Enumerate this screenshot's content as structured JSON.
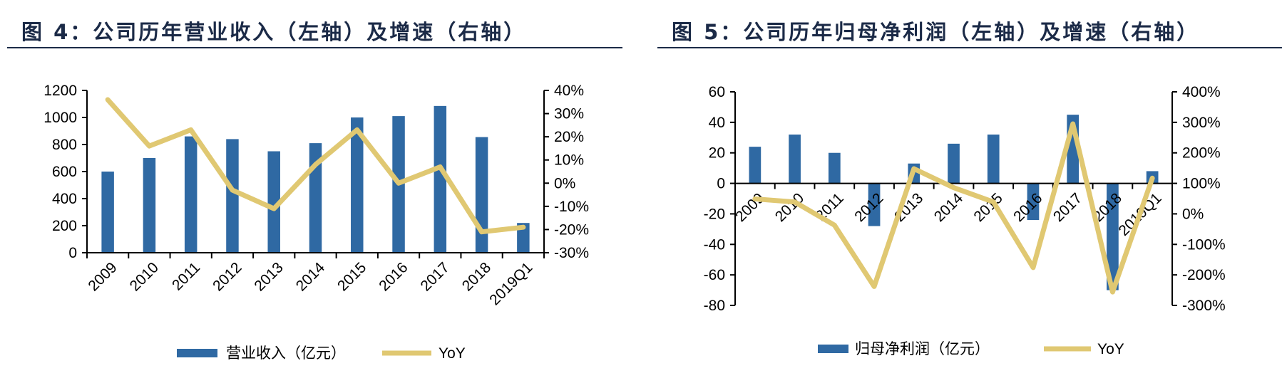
{
  "colors": {
    "bar": "#2f69a3",
    "line": "#e0c872",
    "title": "#1b2a47"
  },
  "chart_data": [
    {
      "type": "bar+line",
      "title": "图 4：公司历年营业收入（左轴）及增速（右轴）",
      "categories": [
        "2009",
        "2010",
        "2011",
        "2012",
        "2013",
        "2014",
        "2015",
        "2016",
        "2017",
        "2018",
        "2019Q1"
      ],
      "series": [
        {
          "name": "营业收入（亿元）",
          "type": "bar",
          "axis": "left",
          "values": [
            600,
            700,
            860,
            840,
            750,
            810,
            1000,
            1010,
            1085,
            855,
            220
          ]
        },
        {
          "name": "YoY",
          "type": "line",
          "axis": "right",
          "values": [
            36,
            16,
            23,
            -3,
            -11,
            8,
            23,
            0,
            7,
            -21,
            -19
          ]
        }
      ],
      "ylim_left": [
        0,
        1200
      ],
      "yticks_left": [
        "0",
        "200",
        "400",
        "600",
        "800",
        "1000",
        "1200"
      ],
      "ylim_right": [
        -30,
        40
      ],
      "yticks_right": [
        "-30%",
        "-20%",
        "-10%",
        "0%",
        "10%",
        "20%",
        "30%",
        "40%"
      ],
      "grid": false,
      "legend": "bottom"
    },
    {
      "type": "bar+line",
      "title": "图 5：公司历年归母净利润（左轴）及增速（右轴）",
      "categories": [
        "2009",
        "2010",
        "2011",
        "2012",
        "2013",
        "2014",
        "2015",
        "2016",
        "2017",
        "2018",
        "2019Q1"
      ],
      "series": [
        {
          "name": "归母净利润（亿元）",
          "type": "bar",
          "axis": "left",
          "values": [
            24,
            32,
            20,
            -28,
            13,
            26,
            32,
            -24,
            45,
            -70,
            8
          ]
        },
        {
          "name": "YoY",
          "type": "line",
          "axis": "right",
          "values": [
            49,
            39,
            -37,
            -238,
            148,
            86,
            39,
            -176,
            295,
            -256,
            117
          ]
        }
      ],
      "ylim_left": [
        -80,
        60
      ],
      "yticks_left": [
        "-80",
        "-60",
        "-40",
        "-20",
        "0",
        "20",
        "40",
        "60"
      ],
      "ylim_right": [
        -300,
        400
      ],
      "yticks_right": [
        "-300%",
        "-200%",
        "-100%",
        "0%",
        "100%",
        "200%",
        "300%",
        "400%"
      ],
      "grid": false,
      "legend": "bottom"
    }
  ]
}
